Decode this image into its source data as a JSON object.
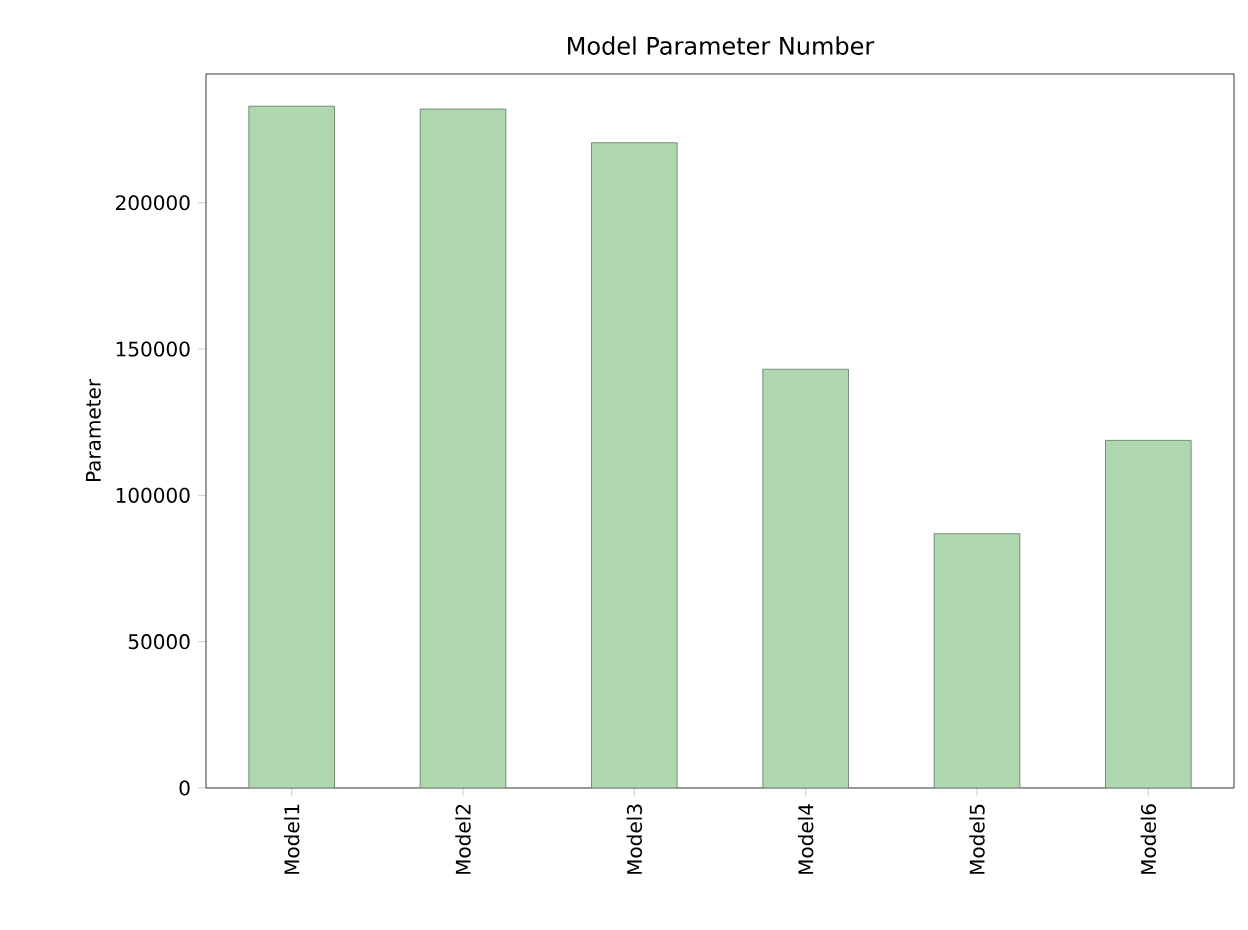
{
  "chart_data": {
    "type": "bar",
    "title": "Model Parameter Number",
    "ylabel": "Parameter",
    "categories": [
      "Model1",
      "Model2",
      "Model3",
      "Model4",
      "Model5",
      "Model6"
    ],
    "values": [
      233000,
      232000,
      220500,
      143100,
      86900,
      118800
    ],
    "color": "#b0d8b0",
    "ylim": [
      0,
      244000
    ],
    "yticks": [
      0,
      50000,
      100000,
      150000,
      200000
    ]
  }
}
